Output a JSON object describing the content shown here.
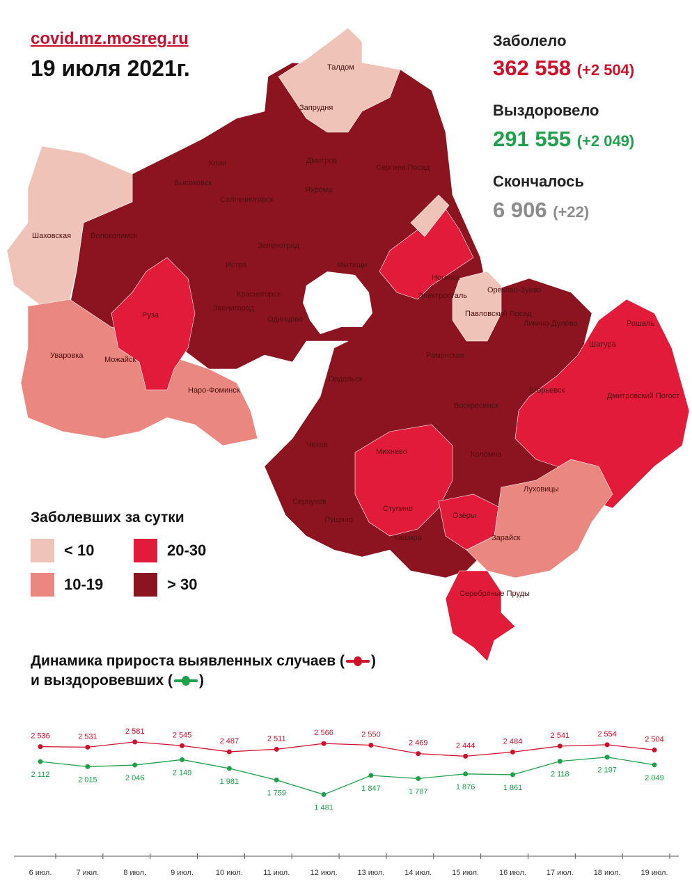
{
  "header": {
    "site": "covid.mz.mosreg.ru",
    "date": "19 июля 2021г."
  },
  "stats": {
    "infected": {
      "label": "Заболело",
      "value": "362 558",
      "delta": "(+2 504)",
      "color": "#d0102a"
    },
    "recovered": {
      "label": "Выздоровело",
      "value": "291 555",
      "delta": "(+2 049)",
      "color": "#1fa04a"
    },
    "deceased": {
      "label": "Скончалось",
      "value": "6 906",
      "delta": "(+22)",
      "color": "#8c8c8c"
    }
  },
  "map": {
    "colors": {
      "lt10": "#efc3b8",
      "10_19": "#e98780",
      "20_30": "#e31b3a",
      "gt30": "#8c1420",
      "moscow": "#ffffff"
    },
    "labels": [
      "Талдом",
      "Запрудня",
      "Клин",
      "Дмитров",
      "Сергиев Посад",
      "Высоковск",
      "Яхрома",
      "Солнечногорск",
      "Шаховская",
      "Волоколамск",
      "Зеленоград",
      "Истра",
      "Мытищи",
      "Ногинск",
      "Орехово-Зуево",
      "Красногорск",
      "Электросталь",
      "Павловский Посад",
      "Руза",
      "Звенигород",
      "Одинцово",
      "Ликино-Дулёво",
      "Рошаль",
      "Уваровка",
      "Можайск",
      "Раменское",
      "Шатура",
      "Наро-Фоминск",
      "Подольск",
      "Егорьевск",
      "Дмитровский Погост",
      "Воскресенск",
      "Чехов",
      "Михнево",
      "Коломна",
      "Серпухов",
      "Ступино",
      "Пущино",
      "Луховицы",
      "Озёры",
      "Кашира",
      "Зарайск",
      "Серебряные Пруды"
    ]
  },
  "legend": {
    "title": "Заболевших за сутки",
    "items": [
      {
        "label": "< 10",
        "color": "#efc3b8"
      },
      {
        "label": "20-30",
        "color": "#e31b3a"
      },
      {
        "label": "10-19",
        "color": "#e98780"
      },
      {
        "label": "> 30",
        "color": "#8c1420"
      }
    ]
  },
  "dynamics": {
    "title_line1": "Динамика прироста выявленных случаев (",
    "title_line1_end": ")",
    "title_line2": "и выздоровевших (",
    "title_line2_end": ")"
  },
  "chart_data": {
    "type": "line",
    "categories": [
      "6 июл.",
      "7 июл.",
      "8 июл.",
      "9 июл.",
      "10 июл.",
      "11 июл.",
      "12 июл.",
      "13 июл.",
      "14 июл.",
      "15 июл.",
      "16 июл.",
      "17 июл.",
      "18 июл.",
      "19 июл."
    ],
    "series": [
      {
        "color": "#d0102a",
        "values": [
          2536,
          2531,
          2581,
          2545,
          2487,
          2511,
          2566,
          2550,
          2469,
          2444,
          2484,
          2541,
          2554,
          2504
        ],
        "labels": [
          "2 536",
          "2 531",
          "2 581",
          "2 545",
          "2 487",
          "2 511",
          "2 566",
          "2 550",
          "2 469",
          "2 444",
          "2 484",
          "2 541",
          "2 554",
          "2 504"
        ]
      },
      {
        "color": "#1fa04a",
        "values": [
          2112,
          2015,
          2046,
          2149,
          1981,
          1759,
          1481,
          1847,
          1787,
          1876,
          1861,
          2118,
          2197,
          2049
        ],
        "labels": [
          "2 112",
          "2 015",
          "2 046",
          "2 149",
          "1 981",
          "1 759",
          "1 481",
          "1 847",
          "1 787",
          "1 876",
          "1 861",
          "2 118",
          "2 197",
          "2 049"
        ]
      }
    ],
    "title": "",
    "xlabel": "",
    "ylabel": "",
    "grid": false
  }
}
